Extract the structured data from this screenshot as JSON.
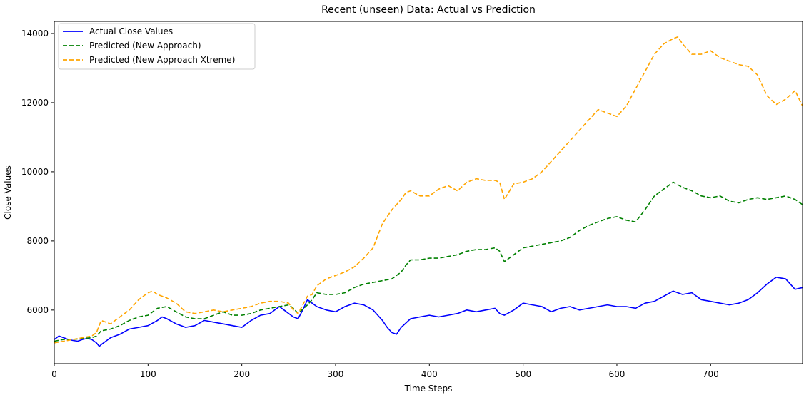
{
  "chart_data": {
    "type": "line",
    "title": "Recent (unseen) Data: Actual vs Prediction",
    "xlabel": "Time Steps",
    "ylabel": "Close Values",
    "xlim": [
      0,
      798
    ],
    "ylim": [
      4450,
      14350
    ],
    "xticks": [
      0,
      100,
      200,
      300,
      400,
      500,
      600,
      700
    ],
    "yticks": [
      6000,
      8000,
      10000,
      12000,
      14000
    ],
    "grid": false,
    "legend_position": "top-left",
    "series": [
      {
        "name": "Actual Close Values",
        "color": "#0000ff",
        "style": "solid",
        "x": [
          0,
          5,
          10,
          15,
          20,
          25,
          30,
          35,
          40,
          45,
          48,
          50,
          55,
          60,
          70,
          80,
          90,
          100,
          110,
          115,
          120,
          130,
          140,
          150,
          160,
          170,
          180,
          190,
          200,
          210,
          220,
          230,
          240,
          245,
          250,
          255,
          260,
          265,
          270,
          275,
          280,
          290,
          300,
          310,
          320,
          330,
          340,
          350,
          355,
          360,
          365,
          370,
          380,
          390,
          400,
          410,
          420,
          430,
          440,
          450,
          460,
          470,
          475,
          480,
          490,
          500,
          510,
          520,
          530,
          540,
          550,
          560,
          570,
          580,
          590,
          600,
          610,
          620,
          630,
          640,
          650,
          660,
          670,
          680,
          690,
          700,
          710,
          720,
          730,
          740,
          750,
          760,
          770,
          780,
          790,
          798
        ],
        "values": [
          5150,
          5250,
          5200,
          5150,
          5120,
          5100,
          5150,
          5180,
          5150,
          5050,
          4950,
          5000,
          5100,
          5200,
          5300,
          5450,
          5500,
          5550,
          5700,
          5800,
          5750,
          5600,
          5500,
          5550,
          5700,
          5650,
          5600,
          5550,
          5500,
          5700,
          5850,
          5900,
          6100,
          6000,
          5900,
          5800,
          5750,
          6000,
          6300,
          6200,
          6100,
          6000,
          5950,
          6100,
          6200,
          6150,
          6000,
          5700,
          5500,
          5350,
          5300,
          5500,
          5750,
          5800,
          5850,
          5800,
          5850,
          5900,
          6000,
          5950,
          6000,
          6050,
          5900,
          5850,
          6000,
          6200,
          6150,
          6100,
          5950,
          6050,
          6100,
          6000,
          6050,
          6100,
          6150,
          6100,
          6100,
          6050,
          6200,
          6250,
          6400,
          6550,
          6450,
          6500,
          6300,
          6250,
          6200,
          6150,
          6200,
          6300,
          6500,
          6750,
          6950,
          6900,
          6600,
          6650
        ]
      },
      {
        "name": "Predicted (New Approach)",
        "color": "#008000",
        "style": "dashed",
        "x": [
          0,
          10,
          20,
          30,
          40,
          45,
          50,
          60,
          70,
          80,
          90,
          100,
          110,
          120,
          130,
          140,
          150,
          160,
          170,
          180,
          190,
          200,
          210,
          220,
          230,
          240,
          250,
          255,
          260,
          270,
          275,
          280,
          290,
          300,
          310,
          320,
          330,
          340,
          350,
          360,
          370,
          375,
          380,
          390,
          400,
          410,
          420,
          430,
          440,
          450,
          460,
          470,
          475,
          480,
          490,
          500,
          510,
          520,
          530,
          540,
          550,
          560,
          570,
          580,
          590,
          600,
          610,
          620,
          630,
          640,
          650,
          660,
          670,
          680,
          690,
          700,
          710,
          720,
          730,
          740,
          750,
          760,
          770,
          780,
          790,
          798
        ],
        "values": [
          5100,
          5150,
          5150,
          5180,
          5200,
          5250,
          5400,
          5450,
          5550,
          5700,
          5800,
          5850,
          6050,
          6100,
          5950,
          5800,
          5750,
          5750,
          5850,
          5950,
          5850,
          5850,
          5900,
          6000,
          6050,
          6100,
          6150,
          6050,
          5900,
          6150,
          6300,
          6500,
          6450,
          6450,
          6500,
          6650,
          6750,
          6800,
          6850,
          6900,
          7100,
          7300,
          7450,
          7450,
          7500,
          7500,
          7550,
          7600,
          7700,
          7750,
          7750,
          7800,
          7700,
          7400,
          7600,
          7800,
          7850,
          7900,
          7950,
          8000,
          8100,
          8300,
          8450,
          8550,
          8650,
          8700,
          8600,
          8550,
          8900,
          9300,
          9500,
          9700,
          9550,
          9450,
          9300,
          9250,
          9300,
          9150,
          9100,
          9200,
          9250,
          9200,
          9250,
          9300,
          9200,
          9050
        ]
      },
      {
        "name": "Predicted (New Approach Xtreme)",
        "color": "#ffa500",
        "style": "dashed",
        "x": [
          0,
          10,
          20,
          30,
          40,
          45,
          50,
          60,
          70,
          80,
          90,
          100,
          105,
          110,
          120,
          130,
          140,
          150,
          160,
          170,
          180,
          190,
          200,
          210,
          220,
          230,
          240,
          250,
          255,
          260,
          270,
          275,
          280,
          290,
          300,
          310,
          320,
          330,
          340,
          350,
          360,
          370,
          375,
          380,
          390,
          400,
          410,
          420,
          430,
          440,
          450,
          460,
          470,
          475,
          480,
          490,
          500,
          510,
          520,
          530,
          540,
          550,
          560,
          570,
          580,
          590,
          600,
          610,
          620,
          630,
          640,
          650,
          660,
          665,
          670,
          680,
          690,
          700,
          710,
          720,
          730,
          740,
          750,
          760,
          770,
          780,
          790,
          798
        ],
        "values": [
          5050,
          5100,
          5150,
          5200,
          5250,
          5350,
          5700,
          5600,
          5800,
          6000,
          6300,
          6500,
          6550,
          6450,
          6350,
          6200,
          5950,
          5900,
          5950,
          6000,
          5950,
          6000,
          6050,
          6100,
          6200,
          6250,
          6250,
          6200,
          6000,
          5900,
          6400,
          6450,
          6700,
          6900,
          7000,
          7100,
          7250,
          7500,
          7800,
          8500,
          8900,
          9200,
          9400,
          9450,
          9300,
          9300,
          9500,
          9600,
          9450,
          9700,
          9800,
          9750,
          9750,
          9700,
          9200,
          9650,
          9700,
          9800,
          10000,
          10300,
          10600,
          10900,
          11200,
          11500,
          11800,
          11700,
          11600,
          11900,
          12400,
          12900,
          13400,
          13700,
          13850,
          13900,
          13700,
          13400,
          13400,
          13500,
          13300,
          13200,
          13100,
          13050,
          12800,
          12200,
          11950,
          12100,
          12350,
          11900
        ]
      }
    ]
  }
}
